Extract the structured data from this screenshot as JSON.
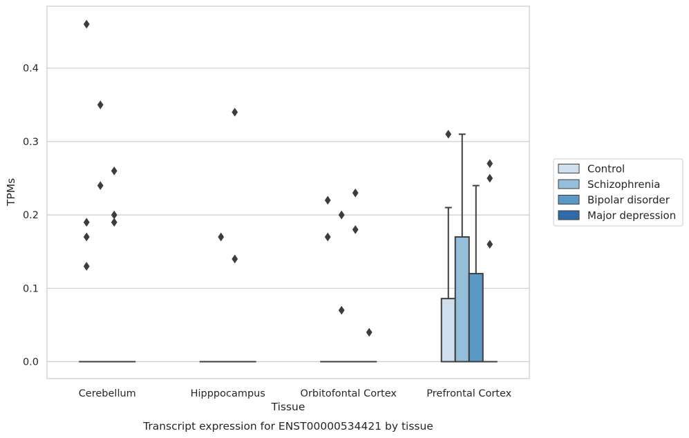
{
  "chart_data": {
    "type": "box",
    "title": "",
    "caption": "Transcript expression for ENST00000534421 by tissue",
    "xlabel": "Tissue",
    "ylabel": "TPMs",
    "categories": [
      "Cerebellum",
      "Hipppocampus",
      "Orbitofontal Cortex",
      "Prefrontal Cortex"
    ],
    "ylim": [
      -0.022,
      0.485
    ],
    "yticks": [
      "0.0",
      "0.1",
      "0.2",
      "0.3",
      "0.4"
    ],
    "grid": true,
    "legend_position": "right",
    "series": [
      {
        "name": "Control",
        "color": "#d0dfee",
        "boxes": [
          {
            "q1": 0,
            "median": 0,
            "q3": 0,
            "whisker_low": 0,
            "whisker_high": 0,
            "outliers": [
              0.46,
              0.19,
              0.17,
              0.13
            ]
          },
          {
            "q1": 0,
            "median": 0,
            "q3": 0,
            "whisker_low": 0,
            "whisker_high": 0,
            "outliers": []
          },
          {
            "q1": 0,
            "median": 0,
            "q3": 0,
            "whisker_low": 0,
            "whisker_high": 0,
            "outliers": [
              0.22,
              0.17
            ]
          },
          {
            "q1": 0,
            "median": 0,
            "q3": 0.086,
            "whisker_low": 0,
            "whisker_high": 0.21,
            "outliers": [
              0.31
            ]
          }
        ]
      },
      {
        "name": "Schizophrenia",
        "color": "#94bed9",
        "boxes": [
          {
            "q1": 0,
            "median": 0,
            "q3": 0,
            "whisker_low": 0,
            "whisker_high": 0,
            "outliers": [
              0.35,
              0.24
            ]
          },
          {
            "q1": 0,
            "median": 0,
            "q3": 0,
            "whisker_low": 0,
            "whisker_high": 0,
            "outliers": [
              0.17
            ]
          },
          {
            "q1": 0,
            "median": 0,
            "q3": 0,
            "whisker_low": 0,
            "whisker_high": 0,
            "outliers": [
              0.2,
              0.07
            ]
          },
          {
            "q1": 0,
            "median": 0,
            "q3": 0.17,
            "whisker_low": 0,
            "whisker_high": 0.31,
            "outliers": []
          }
        ]
      },
      {
        "name": "Bipolar disorder",
        "color": "#5a99c5",
        "boxes": [
          {
            "q1": 0,
            "median": 0,
            "q3": 0,
            "whisker_low": 0,
            "whisker_high": 0,
            "outliers": [
              0.26,
              0.2,
              0.19
            ]
          },
          {
            "q1": 0,
            "median": 0,
            "q3": 0,
            "whisker_low": 0,
            "whisker_high": 0,
            "outliers": [
              0.34,
              0.14
            ]
          },
          {
            "q1": 0,
            "median": 0,
            "q3": 0,
            "whisker_low": 0,
            "whisker_high": 0,
            "outliers": [
              0.23,
              0.18
            ]
          },
          {
            "q1": 0,
            "median": 0,
            "q3": 0.12,
            "whisker_low": 0,
            "whisker_high": 0.24,
            "outliers": []
          }
        ]
      },
      {
        "name": "Major depression",
        "color": "#2f6ba8",
        "boxes": [
          {
            "q1": 0,
            "median": 0,
            "q3": 0,
            "whisker_low": 0,
            "whisker_high": 0,
            "outliers": []
          },
          {
            "q1": 0,
            "median": 0,
            "q3": 0,
            "whisker_low": 0,
            "whisker_high": 0,
            "outliers": []
          },
          {
            "q1": 0,
            "median": 0,
            "q3": 0,
            "whisker_low": 0,
            "whisker_high": 0,
            "outliers": [
              0.04
            ]
          },
          {
            "q1": 0,
            "median": 0,
            "q3": 0,
            "whisker_low": 0,
            "whisker_high": 0,
            "outliers": [
              0.27,
              0.25,
              0.16
            ]
          }
        ]
      }
    ]
  }
}
